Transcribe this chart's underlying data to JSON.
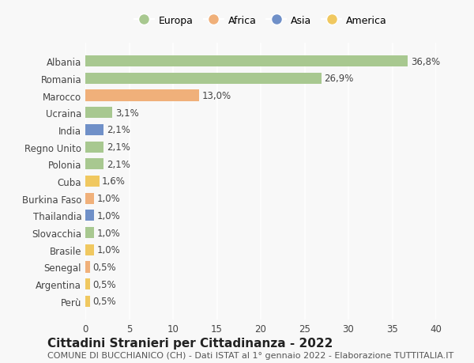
{
  "countries": [
    "Albania",
    "Romania",
    "Marocco",
    "Ucraina",
    "India",
    "Regno Unito",
    "Polonia",
    "Cuba",
    "Burkina Faso",
    "Thailandia",
    "Slovacchia",
    "Brasile",
    "Senegal",
    "Argentina",
    "Perù"
  ],
  "values": [
    36.8,
    26.9,
    13.0,
    3.1,
    2.1,
    2.1,
    2.1,
    1.6,
    1.0,
    1.0,
    1.0,
    1.0,
    0.5,
    0.5,
    0.5
  ],
  "labels": [
    "36,8%",
    "26,9%",
    "13,0%",
    "3,1%",
    "2,1%",
    "2,1%",
    "2,1%",
    "1,6%",
    "1,0%",
    "1,0%",
    "1,0%",
    "1,0%",
    "0,5%",
    "0,5%",
    "0,5%"
  ],
  "continents": [
    "Europa",
    "Europa",
    "Africa",
    "Europa",
    "Asia",
    "Europa",
    "Europa",
    "America",
    "Africa",
    "Asia",
    "Europa",
    "America",
    "Africa",
    "America",
    "America"
  ],
  "continent_colors": {
    "Europa": "#a8c890",
    "Africa": "#f0b07a",
    "Asia": "#7090c8",
    "America": "#f0c860"
  },
  "legend_order": [
    "Europa",
    "Africa",
    "Asia",
    "America"
  ],
  "xlim": [
    0,
    40
  ],
  "xticks": [
    0,
    5,
    10,
    15,
    20,
    25,
    30,
    35,
    40
  ],
  "title": "Cittadini Stranieri per Cittadinanza - 2022",
  "subtitle": "COMUNE DI BUCCHIANICO (CH) - Dati ISTAT al 1° gennaio 2022 - Elaborazione TUTTITALIA.IT",
  "background_color": "#f8f8f8",
  "grid_color": "#ffffff",
  "bar_height": 0.65,
  "title_fontsize": 11,
  "subtitle_fontsize": 8,
  "label_fontsize": 8.5,
  "tick_fontsize": 8.5,
  "legend_fontsize": 9
}
